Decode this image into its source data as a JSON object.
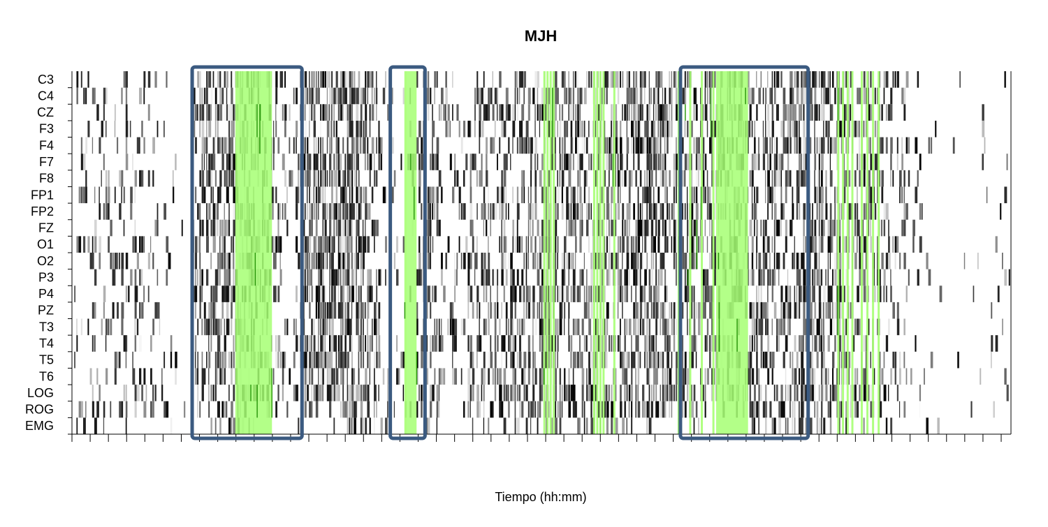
{
  "chart_data": {
    "type": "heatmap",
    "title": "MJH",
    "xlabel": "Tiempo (hh:mm)",
    "ylabel": "",
    "channels": [
      "C3",
      "C4",
      "CZ",
      "F3",
      "F4",
      "F7",
      "F8",
      "FP1",
      "FP2",
      "FZ",
      "O1",
      "O2",
      "P3",
      "P4",
      "PZ",
      "T3",
      "T4",
      "T5",
      "T6",
      "LOG",
      "ROG",
      "EMG"
    ],
    "x_ticks": 52,
    "x_tick_labels": [],
    "value_scale": "grayscale intensity (0 = white, 1 = black)",
    "highlight_color": "#a6ff73",
    "highlight_dark_color": "#2f9a10",
    "box_color": "#3b5a80",
    "density_profile": [
      {
        "t": 0.0,
        "d": 0.05
      },
      {
        "t": 0.01,
        "d": 0.25
      },
      {
        "t": 0.07,
        "d": 0.22
      },
      {
        "t": 0.1,
        "d": 0.15
      },
      {
        "t": 0.125,
        "d": 0.02
      },
      {
        "t": 0.13,
        "d": 0.5
      },
      {
        "t": 0.18,
        "d": 0.7
      },
      {
        "t": 0.235,
        "d": 0.2
      },
      {
        "t": 0.25,
        "d": 0.75
      },
      {
        "t": 0.31,
        "d": 0.8
      },
      {
        "t": 0.335,
        "d": 0.2
      },
      {
        "t": 0.36,
        "d": 0.05
      },
      {
        "t": 0.375,
        "d": 0.55
      },
      {
        "t": 0.4,
        "d": 0.25
      },
      {
        "t": 0.44,
        "d": 0.4
      },
      {
        "t": 0.5,
        "d": 0.55
      },
      {
        "t": 0.56,
        "d": 0.6
      },
      {
        "t": 0.62,
        "d": 0.65
      },
      {
        "t": 0.7,
        "d": 0.45
      },
      {
        "t": 0.75,
        "d": 0.55
      },
      {
        "t": 0.8,
        "d": 0.7
      },
      {
        "t": 0.86,
        "d": 0.4
      },
      {
        "t": 0.9,
        "d": 0.12
      },
      {
        "t": 0.925,
        "d": 0.05
      },
      {
        "t": 0.985,
        "d": 0.05
      },
      {
        "t": 1.0,
        "d": 0.1
      }
    ],
    "highlight_segments": [
      {
        "start": 0.174,
        "end": 0.213,
        "shade": "solid"
      },
      {
        "start": 0.352,
        "end": 0.356,
        "shade": "line"
      },
      {
        "start": 0.356,
        "end": 0.367,
        "shade": "solid"
      },
      {
        "start": 0.502,
        "end": 0.512,
        "shade": "lines"
      },
      {
        "start": 0.555,
        "end": 0.565,
        "shade": "lines"
      },
      {
        "start": 0.575,
        "end": 0.578,
        "shade": "line"
      },
      {
        "start": 0.645,
        "end": 0.682,
        "shade": "lines"
      },
      {
        "start": 0.686,
        "end": 0.72,
        "shade": "solid"
      },
      {
        "start": 0.815,
        "end": 0.83,
        "shade": "lines"
      },
      {
        "start": 0.84,
        "end": 0.858,
        "shade": "lines"
      }
    ],
    "annotation_boxes": [
      {
        "start": 0.128,
        "end": 0.245
      },
      {
        "start": 0.339,
        "end": 0.376
      },
      {
        "start": 0.648,
        "end": 0.784
      }
    ]
  }
}
